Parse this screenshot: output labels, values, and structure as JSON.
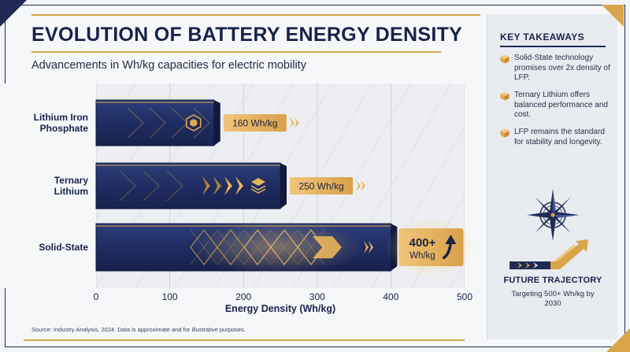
{
  "header": {
    "title": "EVOLUTION OF BATTERY ENERGY DENSITY",
    "subtitle": "Advancements in Wh/kg capacities for electric mobility"
  },
  "footer": {
    "source": "Source: Industry Analysis, 2024. Data is approximate and for illustrative purposes."
  },
  "sidebar": {
    "title": "KEY TAKEAWAYS",
    "takeaways": [
      {
        "text": "Solid-State technology promises over 2x density of LFP.",
        "icon": "cube-icon"
      },
      {
        "text": "Ternary Lithium offers balanced performance and cost.",
        "icon": "cube-icon"
      },
      {
        "text": "LFP remains the standard for stability and longevity.",
        "icon": "cube-icon"
      }
    ],
    "compass_icon": "compass-icon",
    "trajectory_icon": "rising-arrow-icon",
    "future_title": "FUTURE TRAJECTORY",
    "future_text": "Targeting 500+ Wh/kg by 2030"
  },
  "colors": {
    "navy": "#1f2b55",
    "bar_fill": "#233267",
    "gold": "#d9a54a",
    "label_bg": "#e8b45a"
  },
  "chart_data": {
    "type": "bar",
    "orientation": "horizontal",
    "categories": [
      "Lithium Iron Phosphate",
      "Ternary Lithium",
      "Solid-State"
    ],
    "category_labels": [
      [
        "Lithium Iron",
        "Phosphate"
      ],
      [
        "Ternary",
        "Lithium"
      ],
      [
        "Solid-State"
      ]
    ],
    "values": [
      160,
      250,
      400
    ],
    "data_labels": [
      [
        "160 Wh/kg"
      ],
      [
        "250 Wh/kg"
      ],
      [
        "400+",
        "Wh/kg"
      ]
    ],
    "xlabel": "Energy Density (Wh/kg)",
    "ylabel": "",
    "xlim": [
      0,
      500
    ],
    "xticks": [
      0,
      100,
      200,
      300,
      400,
      500
    ],
    "grid": true
  }
}
